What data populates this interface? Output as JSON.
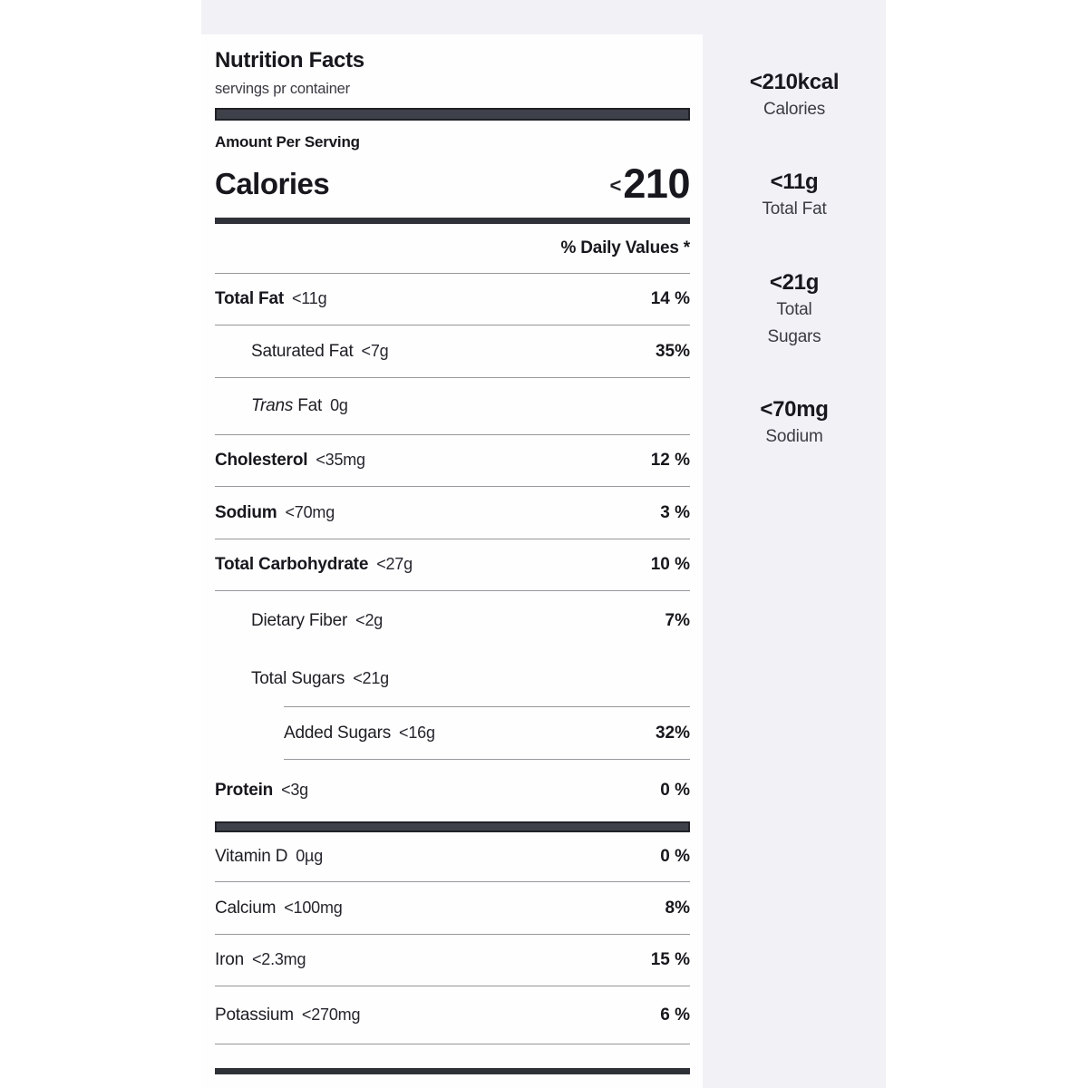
{
  "colors": {
    "panel_bg": "#f2f1f6",
    "card_bg": "#fefefe",
    "text_dark": "#17171d",
    "text_medium": "#3a3a42",
    "divider": "#97979d",
    "thick_bar": "#3f414a"
  },
  "label": {
    "title": "Nutrition Facts",
    "servings": "servings pr container",
    "amount_per_serving": "Amount Per Serving",
    "calories_label": "Calories",
    "calories_chevron": "<",
    "calories_value": "210",
    "daily_values_header": "% Daily Values *",
    "rows": [
      {
        "name_italic": "",
        "name": "Total Fat",
        "amount": "<11g",
        "pct": "14 %"
      },
      {
        "name_italic": "",
        "name": "Saturated Fat",
        "amount": "<7g",
        "pct": "35%"
      },
      {
        "name_italic": "Trans",
        "name": " Fat",
        "amount": "0g",
        "pct": ""
      },
      {
        "name_italic": "",
        "name": "Cholesterol",
        "amount": "<35mg",
        "pct": "12 %"
      },
      {
        "name_italic": "",
        "name": "Sodium",
        "amount": "<70mg",
        "pct": "3 %"
      },
      {
        "name_italic": "",
        "name": "Total Carbohydrate",
        "amount": "<27g",
        "pct": "10 %"
      },
      {
        "name_italic": "",
        "name": "Dietary Fiber",
        "amount": "<2g",
        "pct": "7%"
      },
      {
        "name_italic": "",
        "name": "Total Sugars",
        "amount": "<21g",
        "pct": ""
      },
      {
        "name_italic": "",
        "name": "Added Sugars",
        "amount": "<16g",
        "pct": "32%"
      },
      {
        "name_italic": "",
        "name": "Protein",
        "amount": "<3g",
        "pct": "0 %"
      }
    ],
    "micros": [
      {
        "name": "Vitamin D",
        "amount": "0µg",
        "pct": "0 %"
      },
      {
        "name": "Calcium",
        "amount": "<100mg",
        "pct": "8%"
      },
      {
        "name": "Iron",
        "amount": "<2.3mg",
        "pct": "15 %"
      },
      {
        "name": "Potassium",
        "amount": "<270mg",
        "pct": "6 %"
      }
    ]
  },
  "sidebar": {
    "items": [
      {
        "value": "<210kcal",
        "label": "Calories"
      },
      {
        "value": "<11g",
        "label": "Total Fat"
      },
      {
        "value": "<21g",
        "label": "Total Sugars"
      },
      {
        "value": "<70mg",
        "label": "Sodium"
      }
    ]
  }
}
